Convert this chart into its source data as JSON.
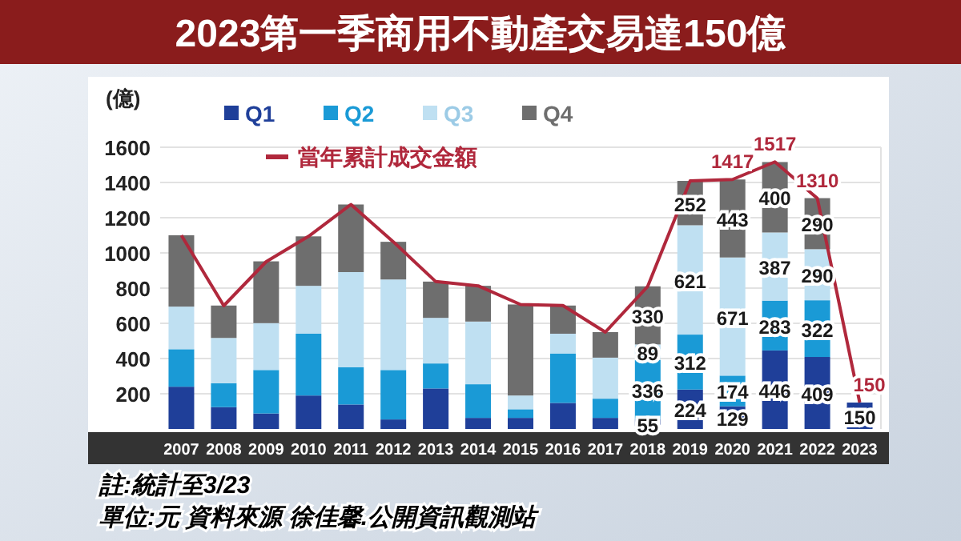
{
  "chart_data": {
    "type": "bar",
    "title": "2023第一季商用不動產交易達150億",
    "ylabel": "(億)",
    "categories": [
      "2007",
      "2008",
      "2009",
      "2010",
      "2011",
      "2012",
      "2013",
      "2014",
      "2015",
      "2016",
      "2017",
      "2018",
      "2019",
      "2020",
      "2021",
      "2022",
      "2023"
    ],
    "stacked": true,
    "ylim": [
      0,
      1600
    ],
    "yticks": [
      200,
      400,
      600,
      800,
      1000,
      1200,
      1400,
      1600
    ],
    "grid": "y",
    "legend": "top",
    "series": [
      {
        "name": "Q1",
        "color": "#1f3f99",
        "values": [
          240,
          124,
          88,
          190,
          139,
          54,
          230,
          63,
          63,
          148,
          63,
          55,
          224,
          129,
          446,
          409,
          150
        ],
        "value_labels": [
          null,
          null,
          null,
          null,
          null,
          null,
          null,
          null,
          null,
          null,
          null,
          "55",
          "224",
          "129",
          "446",
          "409",
          "150"
        ]
      },
      {
        "name": "Q2",
        "color": "#1a9ad6",
        "values": [
          213,
          136,
          247,
          351,
          211,
          281,
          142,
          191,
          49,
          281,
          109,
          336,
          312,
          174,
          283,
          322,
          null
        ],
        "value_labels": [
          null,
          null,
          null,
          null,
          null,
          null,
          null,
          null,
          null,
          null,
          null,
          "336",
          "312",
          "174",
          "283",
          "322",
          null
        ]
      },
      {
        "name": "Q3",
        "color": "#bfe0f2",
        "values": [
          242,
          257,
          266,
          272,
          541,
          514,
          259,
          356,
          78,
          112,
          233,
          89,
          621,
          671,
          387,
          290,
          null
        ],
        "value_labels": [
          null,
          null,
          null,
          null,
          null,
          null,
          null,
          null,
          null,
          null,
          null,
          "89",
          "621",
          "671",
          "387",
          "290",
          null
        ]
      },
      {
        "name": "Q4",
        "color": "#6e6e6e",
        "values": [
          405,
          184,
          351,
          281,
          384,
          214,
          206,
          203,
          517,
          160,
          145,
          330,
          252,
          443,
          400,
          290,
          null
        ],
        "value_labels": [
          null,
          null,
          null,
          null,
          null,
          null,
          null,
          null,
          null,
          null,
          null,
          "330",
          "252",
          "443",
          "400",
          "290",
          null
        ]
      },
      {
        "name": "當年累計成交金額",
        "type": "line",
        "color": "#b0283c",
        "values": [
          1100,
          700,
          950,
          1094,
          1275,
          1063,
          837,
          813,
          707,
          701,
          550,
          810,
          1409,
          1417,
          1517,
          1310,
          150
        ],
        "value_labels": [
          null,
          null,
          null,
          null,
          null,
          null,
          null,
          null,
          null,
          null,
          null,
          null,
          null,
          "1417",
          "1517",
          "1310",
          "150"
        ]
      }
    ],
    "annotations": [
      "註:統計至3/23",
      "單位:元 資料來源 徐佳馨.公開資訊觀測站"
    ]
  }
}
